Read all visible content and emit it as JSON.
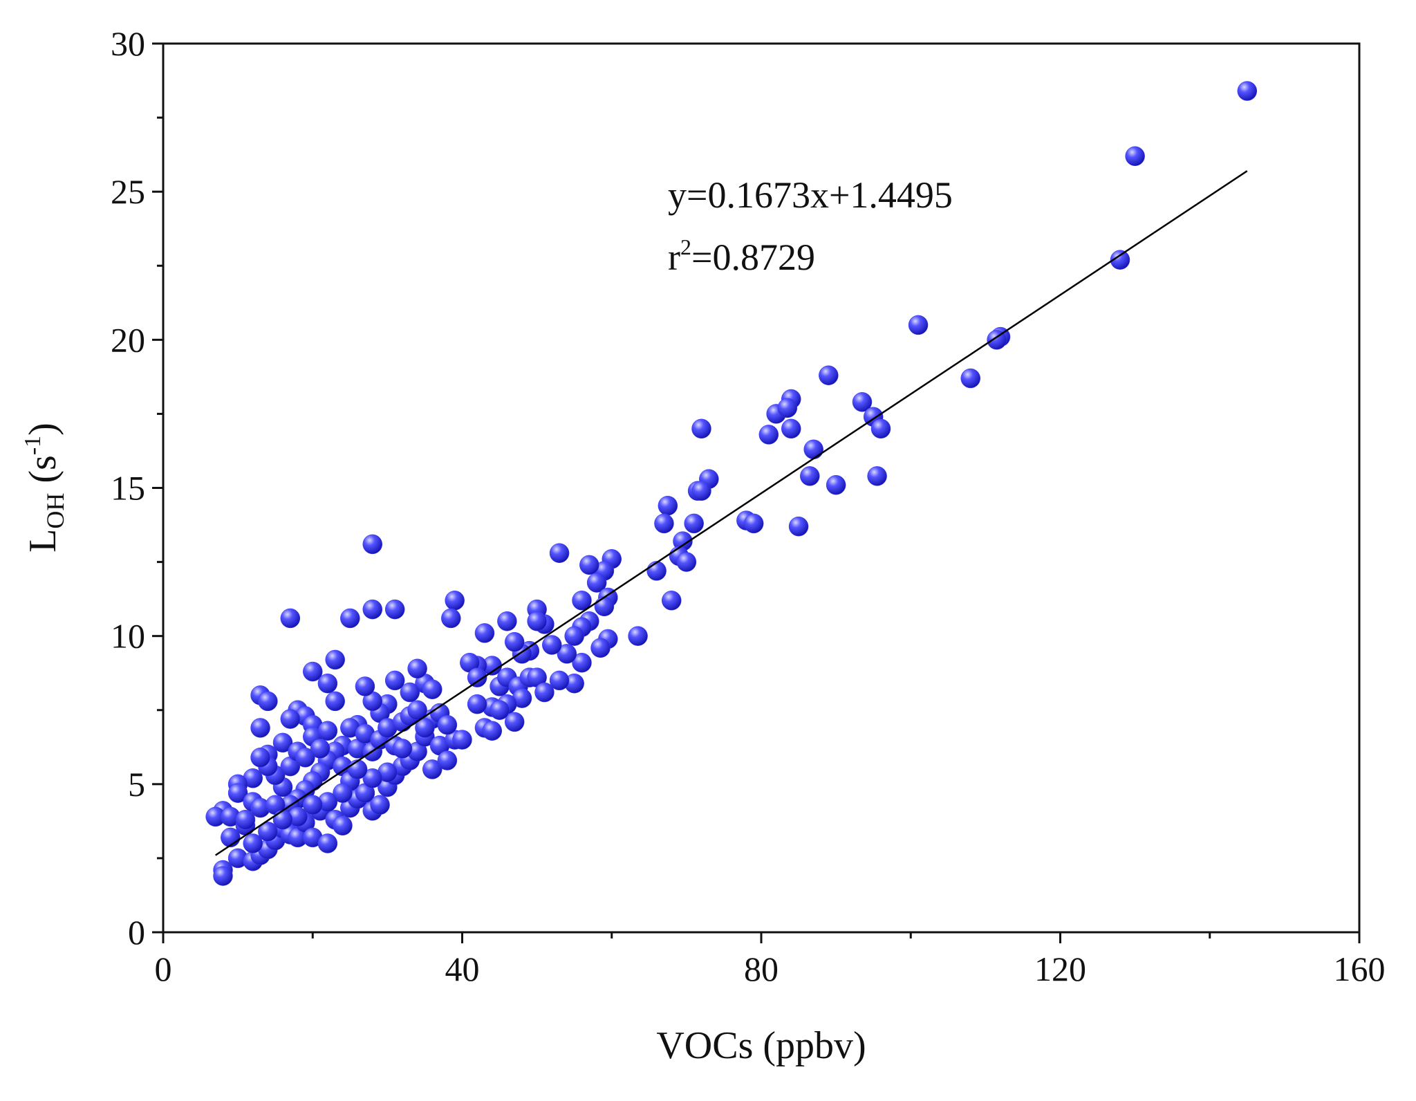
{
  "chart_data": {
    "type": "scatter",
    "x_label": "VOCs (ppbv)",
    "y_label": {
      "main": "L",
      "sub": "OH",
      "open": " (s",
      "sup": "-1",
      "close": ")"
    },
    "annotation": {
      "equation": "y=0.1673x+1.4495",
      "r_main": "r",
      "r_sup": "2",
      "r_value": "=0.8729"
    },
    "color": "#3a3aff",
    "xlim": [
      0,
      160
    ],
    "xticks": [
      0,
      40,
      80,
      120,
      160
    ],
    "xticks_minor": [
      20,
      60,
      100,
      140
    ],
    "ylim": [
      0,
      30
    ],
    "yticks": [
      0,
      5,
      10,
      15,
      20,
      25,
      30
    ],
    "yticks_minor": [
      2.5,
      7.5,
      12.5,
      17.5,
      22.5,
      27.5
    ],
    "fit_line": {
      "x": [
        7,
        145
      ],
      "y": [
        2.6,
        25.7
      ]
    },
    "x": [
      145,
      130,
      128,
      101,
      112,
      111.5,
      108,
      89,
      93.5,
      95,
      96,
      84,
      82,
      83.5,
      84,
      81,
      87,
      72,
      73,
      71.5,
      72,
      86.5,
      90,
      95.5,
      85,
      78,
      79,
      67.5,
      67,
      71,
      69.5,
      69,
      70,
      66,
      68,
      63.5,
      60,
      59,
      57,
      58,
      56,
      59.5,
      59,
      57,
      56,
      55,
      59.5,
      58.5,
      56,
      53,
      54,
      55,
      53,
      52,
      51,
      50,
      50,
      49,
      48,
      47,
      46,
      43,
      44,
      42,
      41,
      42,
      45,
      46,
      47.5,
      49,
      50,
      51,
      48,
      46,
      44,
      47,
      43,
      44,
      42,
      45,
      39,
      38.5,
      28,
      17,
      25,
      28,
      31,
      23,
      20,
      22,
      23,
      13,
      14,
      13,
      18,
      19,
      17,
      20,
      16,
      14,
      12,
      10,
      10,
      8,
      7,
      9,
      11,
      9,
      8,
      8,
      10,
      12,
      13,
      14,
      15,
      16,
      17,
      18,
      19,
      20,
      21,
      22,
      23,
      24,
      25,
      26,
      27,
      28,
      29,
      30,
      31,
      32,
      33,
      34,
      35,
      36,
      37,
      38,
      39,
      36,
      35,
      34,
      33,
      31,
      30,
      29,
      28,
      27,
      26,
      25,
      24,
      23,
      22,
      21,
      20,
      19,
      18,
      17,
      16,
      15,
      14,
      13,
      12,
      11,
      13,
      15,
      17,
      18,
      19,
      20,
      21,
      22,
      24,
      25,
      26,
      27,
      28,
      29,
      30,
      31,
      32,
      33,
      34,
      35,
      36,
      37,
      38,
      40,
      32,
      30,
      28,
      26,
      24,
      22,
      20,
      18,
      16,
      14,
      12
    ],
    "values": [
      28.4,
      26.2,
      22.7,
      20.5,
      20.1,
      20,
      18.7,
      18.8,
      17.9,
      17.4,
      17,
      18,
      17.5,
      17.7,
      17,
      16.8,
      16.3,
      17,
      15.3,
      14.9,
      14.9,
      15.4,
      15.1,
      15.4,
      13.7,
      13.9,
      13.8,
      14.4,
      13.8,
      13.8,
      13.2,
      12.7,
      12.5,
      12.2,
      11.2,
      10,
      12.6,
      12.2,
      12.4,
      11.8,
      11.2,
      11.3,
      11,
      10.5,
      10.3,
      10,
      9.9,
      9.6,
      9.1,
      12.8,
      9.4,
      8.4,
      8.5,
      9.7,
      10.4,
      10.9,
      10.5,
      9.5,
      9.4,
      9.8,
      10.5,
      10.1,
      9,
      9,
      9.1,
      8.6,
      8.3,
      8.6,
      8.3,
      8.6,
      8.6,
      8.1,
      7.9,
      7.7,
      7.6,
      7.1,
      6.9,
      6.8,
      7.7,
      7.5,
      11.2,
      10.6,
      13.1,
      10.6,
      10.6,
      10.9,
      10.9,
      9.2,
      8.8,
      8.4,
      7.8,
      8,
      7.8,
      6.9,
      7.5,
      7.3,
      7.2,
      7,
      6.4,
      6,
      5.2,
      5,
      4.7,
      4.1,
      3.9,
      3.9,
      3.6,
      3.2,
      2.1,
      1.9,
      2.5,
      2.4,
      2.6,
      2.8,
      3.1,
      3.5,
      3.3,
      3.2,
      3.7,
      3.2,
      4.1,
      3,
      3.8,
      3.6,
      4.2,
      4.5,
      4.7,
      4.1,
      4.3,
      4.9,
      5.3,
      5.6,
      5.8,
      6.1,
      6.6,
      5.5,
      6.3,
      5.8,
      6.5,
      7.2,
      8.4,
      8.9,
      8.1,
      8.5,
      7.7,
      7.4,
      7.8,
      8.3,
      7,
      6.9,
      6.3,
      6.1,
      5.8,
      5.4,
      5.1,
      4.8,
      4.5,
      4.3,
      4.9,
      5.3,
      5.6,
      5.9,
      4.4,
      3.8,
      4.2,
      4.3,
      5.6,
      6.1,
      5.9,
      6.6,
      6.2,
      6.8,
      5.6,
      5.1,
      6.2,
      6.7,
      6.1,
      6.5,
      6.9,
      6.3,
      7.1,
      7.3,
      7.5,
      6.9,
      8.2,
      7.4,
      7,
      6.5,
      6.2,
      5.4,
      5.2,
      5.5,
      4.7,
      4.4,
      4.3,
      3.9,
      3.8,
      3.4,
      3
    ]
  }
}
